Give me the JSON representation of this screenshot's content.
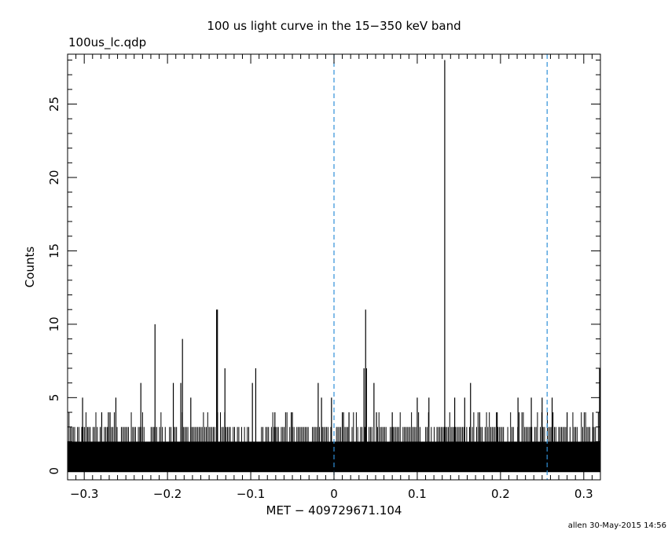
{
  "chart_data": {
    "type": "bar",
    "title": "100 us light curve in the 15−350 keV band",
    "file_label": "100us_lc.qdp",
    "xlabel": "MET − 409729671.104",
    "ylabel": "Counts",
    "xlim": [
      -0.32,
      0.32
    ],
    "ylim": [
      -0.6,
      28.4
    ],
    "x_ticks": [
      -0.3,
      -0.2,
      -0.1,
      0,
      0.1,
      0.2,
      0.3
    ],
    "x_tick_labels": [
      "−0.3",
      "−0.2",
      "−0.1",
      "0",
      "0.1",
      "0.2",
      "0.3"
    ],
    "y_ticks": [
      0,
      5,
      10,
      15,
      20,
      25
    ],
    "y_tick_labels": [
      "0",
      "5",
      "10",
      "15",
      "20",
      "25"
    ],
    "bin_width": 0.0001,
    "background_band": {
      "low": 0,
      "high": 2
    },
    "baseline_fill_counts": 2,
    "spikes": [
      {
        "x": -0.302,
        "y": 5
      },
      {
        "x": -0.296,
        "y": 3
      },
      {
        "x": -0.279,
        "y": 4
      },
      {
        "x": -0.271,
        "y": 4
      },
      {
        "x": -0.269,
        "y": 4
      },
      {
        "x": -0.262,
        "y": 5
      },
      {
        "x": -0.232,
        "y": 6
      },
      {
        "x": -0.215,
        "y": 10
      },
      {
        "x": -0.193,
        "y": 6
      },
      {
        "x": -0.184,
        "y": 6
      },
      {
        "x": -0.182,
        "y": 9
      },
      {
        "x": -0.172,
        "y": 5
      },
      {
        "x": -0.141,
        "y": 11
      },
      {
        "x": -0.14,
        "y": 11
      },
      {
        "x": -0.131,
        "y": 7
      },
      {
        "x": -0.098,
        "y": 6
      },
      {
        "x": -0.094,
        "y": 7
      },
      {
        "x": -0.071,
        "y": 4
      },
      {
        "x": -0.05,
        "y": 4
      },
      {
        "x": -0.019,
        "y": 6
      },
      {
        "x": -0.015,
        "y": 5
      },
      {
        "x": -0.003,
        "y": 5
      },
      {
        "x": 0.01,
        "y": 4
      },
      {
        "x": 0.018,
        "y": 4
      },
      {
        "x": 0.036,
        "y": 7
      },
      {
        "x": 0.038,
        "y": 11
      },
      {
        "x": 0.039,
        "y": 7
      },
      {
        "x": 0.048,
        "y": 6
      },
      {
        "x": 0.051,
        "y": 4
      },
      {
        "x": 0.07,
        "y": 4
      },
      {
        "x": 0.1,
        "y": 5
      },
      {
        "x": 0.114,
        "y": 5
      },
      {
        "x": 0.133,
        "y": 28
      },
      {
        "x": 0.145,
        "y": 5
      },
      {
        "x": 0.157,
        "y": 5
      },
      {
        "x": 0.164,
        "y": 6
      },
      {
        "x": 0.175,
        "y": 4
      },
      {
        "x": 0.196,
        "y": 4
      },
      {
        "x": 0.221,
        "y": 5
      },
      {
        "x": 0.237,
        "y": 5
      },
      {
        "x": 0.25,
        "y": 5
      },
      {
        "x": 0.262,
        "y": 5
      },
      {
        "x": 0.28,
        "y": 4
      },
      {
        "x": 0.311,
        "y": 4
      },
      {
        "x": 0.319,
        "y": 7
      }
    ],
    "secondary_threes_hint": "many bins reach 3–4 counts across the range",
    "vertical_markers": [
      {
        "x": 0,
        "style": "dashed",
        "color": "#2f8fd8"
      },
      {
        "x": 0.256,
        "style": "dashed",
        "color": "#2f8fd8"
      }
    ],
    "grid": false,
    "legend": "none",
    "colors": {
      "bars": "#000000",
      "markers": "#2f8fd8",
      "frame": "#000000"
    }
  },
  "footer": {
    "stamp": "allen 30-May-2015 14:56"
  }
}
